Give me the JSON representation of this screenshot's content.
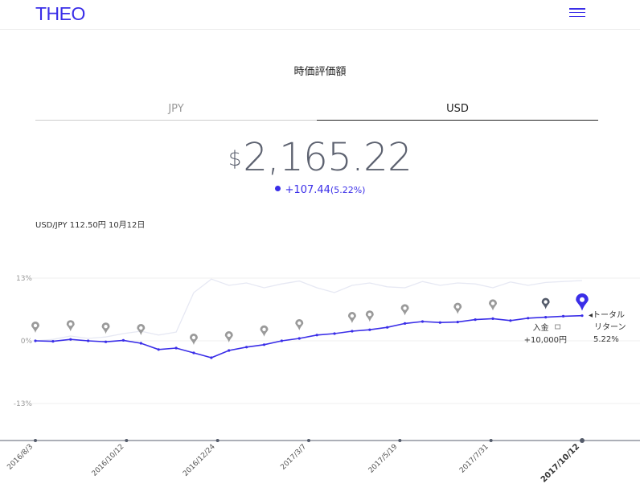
{
  "header": {
    "logo": "THEO",
    "menu_icon": "hamburger-icon"
  },
  "title": "時価評価額",
  "tabs": [
    {
      "label": "JPY",
      "active": false
    },
    {
      "label": "USD",
      "active": true
    }
  ],
  "valuation": {
    "currency_symbol": "$",
    "amount": "2,165.22",
    "change": "+107.44",
    "change_pct": "(5.22%)"
  },
  "fx_note": "USD/JPY 112.50円 10月12日",
  "colors": {
    "brand": "#3a2ee8",
    "benchmark_line": "#e6e8f3",
    "marker": "#9a9a9a",
    "deposit_marker": "#555c6b"
  },
  "chart_data": {
    "type": "line",
    "y_ticks": [
      "13%",
      "0%",
      "-13%"
    ],
    "ylim": [
      -13,
      13
    ],
    "x_ticks": [
      "2016/8/3",
      "2016/10/12",
      "2016/12/24",
      "2017/3/7",
      "2017/5/19",
      "2017/7/31",
      "2017/10/12"
    ],
    "x": [
      "2016/8/3",
      "2016/8/17",
      "2016/8/31",
      "2016/9/14",
      "2016/9/28",
      "2016/10/12",
      "2016/10/26",
      "2016/11/9",
      "2016/11/23",
      "2016/12/7",
      "2016/12/21",
      "2017/1/4",
      "2017/1/18",
      "2017/2/1",
      "2017/2/15",
      "2017/3/1",
      "2017/3/15",
      "2017/3/29",
      "2017/4/12",
      "2017/4/26",
      "2017/5/10",
      "2017/5/24",
      "2017/6/7",
      "2017/6/21",
      "2017/7/5",
      "2017/7/19",
      "2017/8/2",
      "2017/8/16",
      "2017/8/30",
      "2017/9/13",
      "2017/9/27",
      "2017/10/12"
    ],
    "series": [
      {
        "values": [
          0,
          -0.1,
          0.3,
          0,
          -0.2,
          0.1,
          -0.5,
          -1.8,
          -1.5,
          -2.5,
          -3.5,
          -2,
          -1.3,
          -0.8,
          0,
          0.5,
          1.2,
          1.5,
          2,
          2.3,
          2.8,
          3.6,
          4,
          3.8,
          3.9,
          4.4,
          4.6,
          4.2,
          4.7,
          4.9,
          5.1,
          5.22
        ]
      },
      {
        "values": [
          0,
          0.3,
          1,
          0.5,
          0.8,
          1.5,
          2,
          1.2,
          1.8,
          10,
          12.8,
          11.5,
          12,
          11,
          11.8,
          12.4,
          11,
          10,
          11.5,
          12,
          11.2,
          11,
          12.3,
          11.5,
          12,
          11.8,
          11,
          12.2,
          11.5,
          12.1,
          12.3,
          12.5
        ]
      }
    ],
    "markers": [
      {
        "x": "2016/8/3",
        "type": "pin"
      },
      {
        "x": "2016/8/31",
        "type": "pin"
      },
      {
        "x": "2016/9/28",
        "type": "pin"
      },
      {
        "x": "2016/10/26",
        "type": "pin"
      },
      {
        "x": "2016/12/7",
        "type": "pin"
      },
      {
        "x": "2017/1/4",
        "type": "pin"
      },
      {
        "x": "2017/2/1",
        "type": "pin"
      },
      {
        "x": "2017/3/1",
        "type": "pin"
      },
      {
        "x": "2017/4/12",
        "type": "pin"
      },
      {
        "x": "2017/4/26",
        "type": "pin"
      },
      {
        "x": "2017/5/24",
        "type": "pin"
      },
      {
        "x": "2017/7/5",
        "type": "pin"
      },
      {
        "x": "2017/8/2",
        "type": "pin"
      },
      {
        "x": "2017/9/13",
        "type": "deposit"
      },
      {
        "x": "2017/10/12",
        "type": "current"
      }
    ],
    "annotations": {
      "deposit_label": "入金 ",
      "deposit_amount": "+10,000円",
      "return_label_1": "◂トータル",
      "return_label_2": "リターン",
      "return_value": "5.22%"
    }
  }
}
